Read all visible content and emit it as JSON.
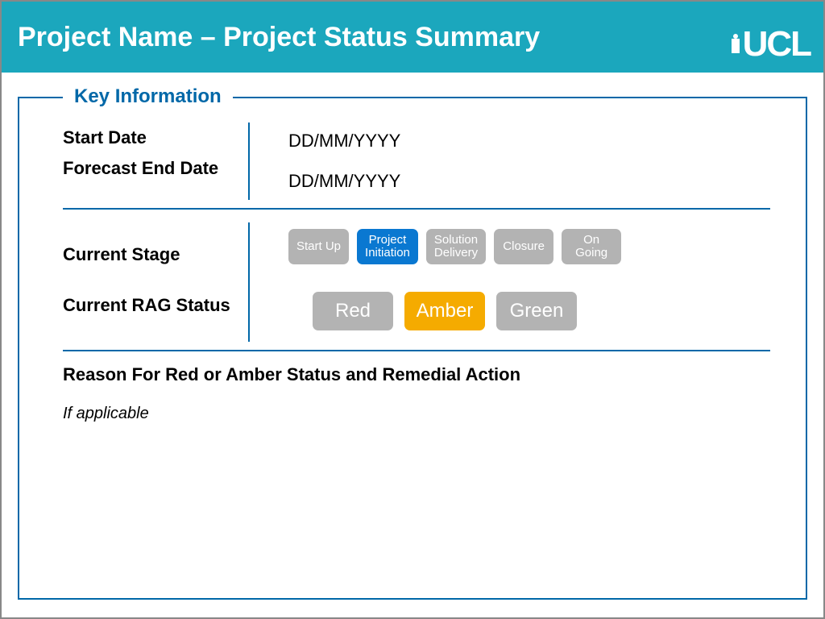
{
  "header": {
    "title": "Project Name – Project Status Summary",
    "logo_text": "UCL"
  },
  "legend": "Key Information",
  "fields": {
    "start_date_label": "Start Date",
    "start_date_value": "DD/MM/YYYY",
    "forecast_end_label": "Forecast End Date",
    "forecast_end_value": "DD/MM/YYYY",
    "current_stage_label": "Current Stage",
    "current_rag_label": "Current RAG Status",
    "reason_title": "Reason For Red or Amber Status and Remedial Action",
    "reason_body": "If applicable"
  },
  "stages": [
    {
      "label": "Start Up",
      "active": false
    },
    {
      "label": "Project\nInitiation",
      "active": true
    },
    {
      "label": "Solution\nDelivery",
      "active": false
    },
    {
      "label": "Closure",
      "active": false
    },
    {
      "label": "On\nGoing",
      "active": false
    }
  ],
  "rag": [
    {
      "label": "Red",
      "active": false
    },
    {
      "label": "Amber",
      "active": true
    },
    {
      "label": "Green",
      "active": false
    }
  ],
  "colors": {
    "header_bg": "#1ba7bd",
    "border_blue": "#0068a8",
    "pill_inactive": "#b3b3b3",
    "pill_active_blue": "#0a78d1",
    "rag_active_amber": "#f5ab00",
    "text_white": "#ffffff"
  }
}
